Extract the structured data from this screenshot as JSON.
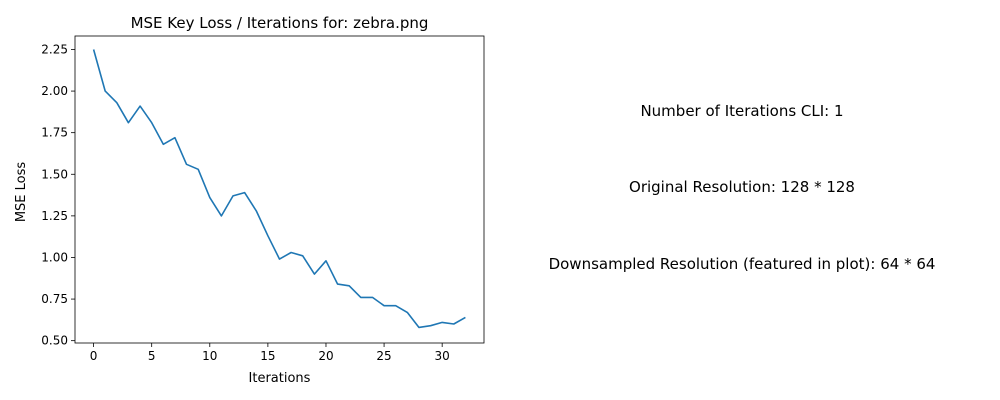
{
  "chart_data": {
    "type": "line",
    "title": "MSE Key Loss / Iterations for: zebra.png",
    "xlabel": "Iterations",
    "ylabel": "MSE Loss",
    "xlim": [
      -1.6,
      33.6
    ],
    "ylim": [
      0.486,
      2.331
    ],
    "xticks": [
      0,
      5,
      10,
      15,
      20,
      25,
      30
    ],
    "xtick_labels": [
      "0",
      "5",
      "10",
      "15",
      "20",
      "25",
      "30"
    ],
    "yticks": [
      0.5,
      0.75,
      1.0,
      1.25,
      1.5,
      1.75,
      2.0,
      2.25
    ],
    "ytick_labels": [
      "0.50",
      "0.75",
      "1.00",
      "1.25",
      "1.50",
      "1.75",
      "2.00",
      "2.25"
    ],
    "grid": false,
    "line_color": "#1f77b4",
    "series": [
      {
        "x": [
          0,
          1,
          2,
          3,
          4,
          5,
          6,
          7,
          8,
          9,
          10,
          11,
          12,
          13,
          14,
          15,
          16,
          17,
          18,
          19,
          20,
          21,
          22,
          23,
          24,
          25,
          26,
          27,
          28,
          29,
          30,
          31,
          32
        ],
        "values": [
          2.25,
          2.0,
          1.93,
          1.81,
          1.91,
          1.81,
          1.68,
          1.72,
          1.56,
          1.53,
          1.36,
          1.25,
          1.37,
          1.39,
          1.28,
          1.13,
          0.99,
          1.03,
          1.01,
          0.9,
          0.98,
          0.84,
          0.83,
          0.76,
          0.76,
          0.71,
          0.71,
          0.67,
          0.58,
          0.59,
          0.61,
          0.6,
          0.64
        ]
      }
    ]
  },
  "info": {
    "iterations_cli": "Number of Iterations CLI: 1",
    "original_resolution": "Original Resolution: 128 * 128",
    "downsampled_resolution": "Downsampled Resolution (featured in plot): 64 * 64"
  }
}
